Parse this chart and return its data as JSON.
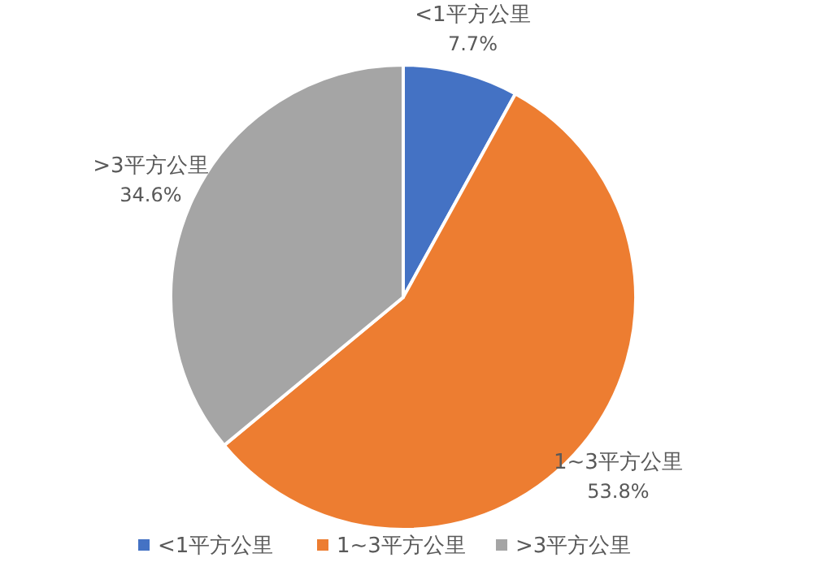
{
  "chart_data": {
    "type": "pie",
    "categories": [
      "<1平方公里",
      "1~3平方公里",
      ">3平方公里"
    ],
    "values": [
      7.7,
      53.8,
      34.6
    ],
    "colors": [
      "#4472c4",
      "#ed7d31",
      "#a5a5a5"
    ],
    "value_labels": [
      "7.7%",
      "53.8%",
      "34.6%"
    ],
    "legend": "bottom"
  }
}
